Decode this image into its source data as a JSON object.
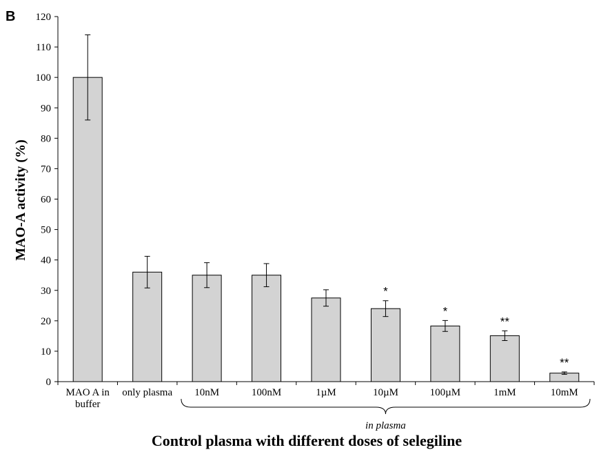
{
  "chart_data": {
    "type": "bar",
    "panel_label": "B",
    "ylabel": "MAO-A activity (%)",
    "xlabel": "Control plasma with different doses of selegiline",
    "group_label": "in plasma",
    "ylim": [
      0,
      120
    ],
    "yticks": [
      "0",
      "10",
      "20",
      "30",
      "40",
      "50",
      "60",
      "70",
      "80",
      "90",
      "100",
      "110",
      "120"
    ],
    "categories": [
      [
        "MAO A in",
        "buffer"
      ],
      [
        "only plasma"
      ],
      [
        "10nM"
      ],
      [
        "100nM"
      ],
      [
        "1µM"
      ],
      [
        "10µM"
      ],
      [
        "100µM"
      ],
      [
        "1mM"
      ],
      [
        "10mM"
      ]
    ],
    "values": [
      100,
      36,
      35,
      35,
      27.5,
      24,
      18.3,
      15.1,
      2.8
    ],
    "errors": [
      14,
      5.2,
      4.1,
      3.8,
      2.7,
      2.6,
      1.8,
      1.6,
      0.4
    ],
    "significance": [
      "",
      "",
      "",
      "",
      "",
      "*",
      "*",
      "**",
      "**"
    ],
    "bar_color": "#d3d3d3",
    "grid": false
  }
}
